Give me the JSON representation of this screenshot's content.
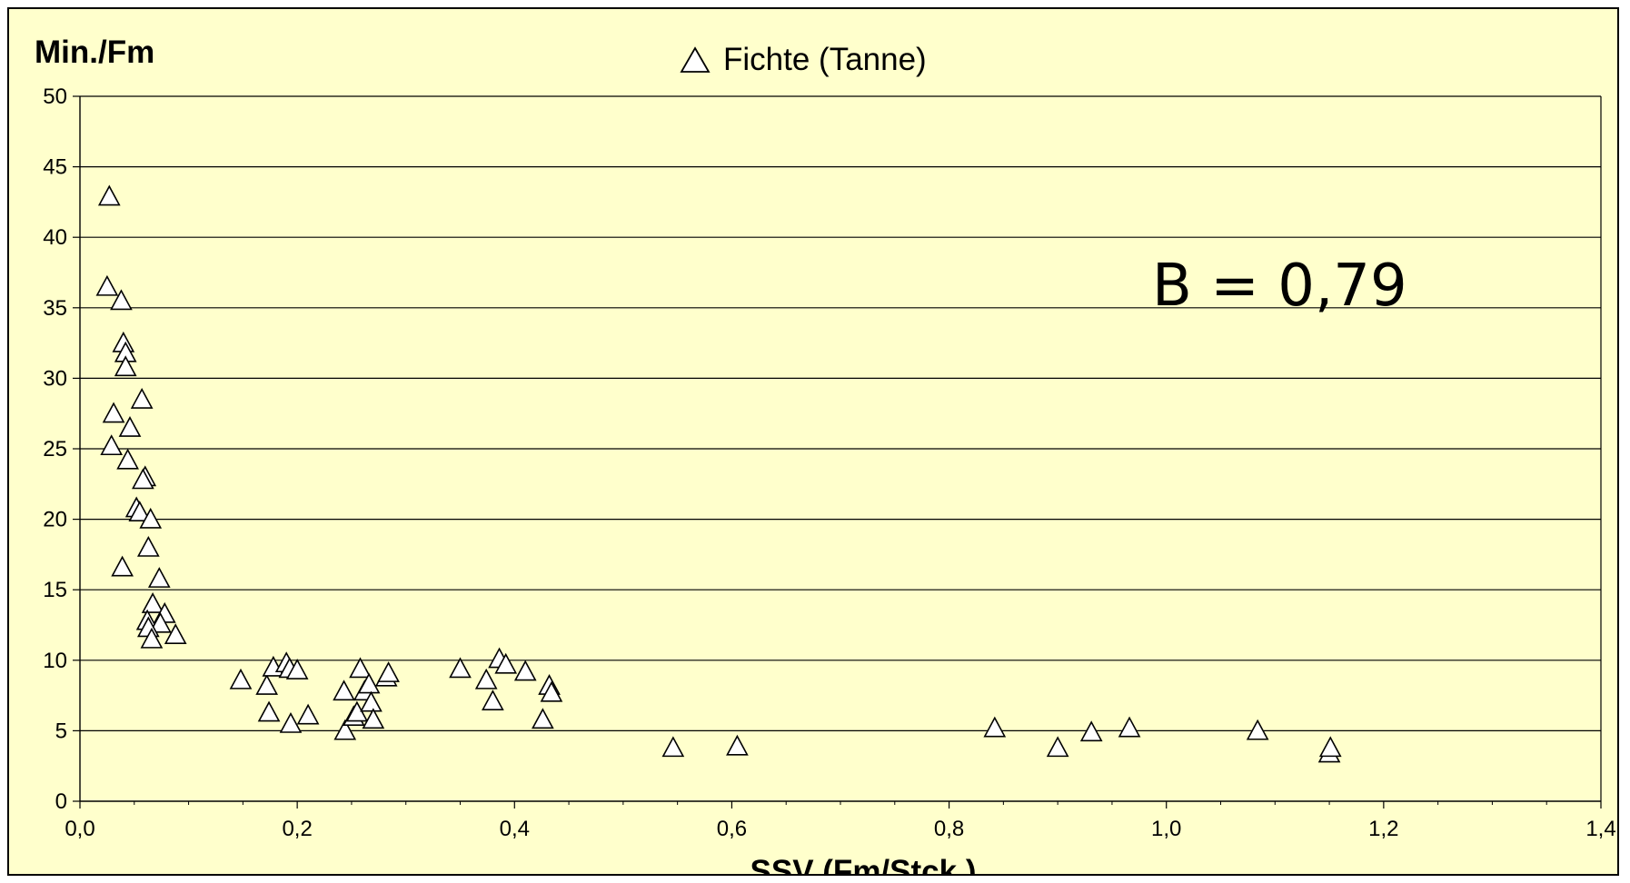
{
  "chart_data": {
    "type": "scatter",
    "ylabel": "Min./Fm",
    "xlabel": "SSV (Fm/Stck.)",
    "xlim": [
      0,
      1.4
    ],
    "ylim": [
      0,
      50
    ],
    "x_ticks": [
      "0,0",
      "0,2",
      "0,4",
      "0,6",
      "0,8",
      "1,0",
      "1,2",
      "1,4"
    ],
    "y_ticks": [
      "0",
      "5",
      "10",
      "15",
      "20",
      "25",
      "30",
      "35",
      "40",
      "45",
      "50"
    ],
    "grid": "horizontal",
    "legend_position": "top-center",
    "annotation": "B = 0,79",
    "series": [
      {
        "name": "Fichte (Tanne)",
        "marker": "triangle-open",
        "points": [
          [
            0.027,
            42.9
          ],
          [
            0.025,
            36.5
          ],
          [
            0.038,
            35.5
          ],
          [
            0.04,
            32.5
          ],
          [
            0.042,
            31.8
          ],
          [
            0.042,
            30.8
          ],
          [
            0.057,
            28.5
          ],
          [
            0.031,
            27.5
          ],
          [
            0.046,
            26.5
          ],
          [
            0.029,
            25.2
          ],
          [
            0.044,
            24.2
          ],
          [
            0.06,
            23.0
          ],
          [
            0.058,
            22.8
          ],
          [
            0.052,
            20.8
          ],
          [
            0.055,
            20.5
          ],
          [
            0.065,
            20.0
          ],
          [
            0.063,
            18.0
          ],
          [
            0.039,
            16.6
          ],
          [
            0.073,
            15.8
          ],
          [
            0.067,
            14.0
          ],
          [
            0.078,
            13.3
          ],
          [
            0.062,
            12.8
          ],
          [
            0.074,
            12.6
          ],
          [
            0.063,
            12.3
          ],
          [
            0.088,
            11.8
          ],
          [
            0.066,
            11.5
          ],
          [
            0.148,
            8.6
          ],
          [
            0.172,
            8.2
          ],
          [
            0.174,
            6.3
          ],
          [
            0.178,
            9.5
          ],
          [
            0.19,
            9.8
          ],
          [
            0.193,
            9.4
          ],
          [
            0.2,
            9.3
          ],
          [
            0.194,
            5.5
          ],
          [
            0.21,
            6.1
          ],
          [
            0.243,
            7.8
          ],
          [
            0.244,
            5.0
          ],
          [
            0.252,
            6.0
          ],
          [
            0.255,
            6.3
          ],
          [
            0.258,
            9.4
          ],
          [
            0.262,
            7.8
          ],
          [
            0.266,
            8.3
          ],
          [
            0.268,
            7.0
          ],
          [
            0.27,
            5.8
          ],
          [
            0.282,
            8.8
          ],
          [
            0.284,
            9.1
          ],
          [
            0.35,
            9.4
          ],
          [
            0.374,
            8.6
          ],
          [
            0.38,
            7.1
          ],
          [
            0.386,
            10.1
          ],
          [
            0.392,
            9.7
          ],
          [
            0.41,
            9.2
          ],
          [
            0.426,
            5.8
          ],
          [
            0.432,
            8.2
          ],
          [
            0.434,
            7.7
          ],
          [
            0.546,
            3.8
          ],
          [
            0.605,
            3.9
          ],
          [
            0.842,
            5.2
          ],
          [
            0.9,
            3.8
          ],
          [
            0.931,
            4.9
          ],
          [
            0.966,
            5.2
          ],
          [
            1.084,
            5.0
          ],
          [
            1.15,
            3.4
          ],
          [
            1.151,
            3.8
          ]
        ]
      }
    ]
  },
  "colors": {
    "background": "#ffffcc",
    "grid": "#000000",
    "marker_fill": "#ffffff",
    "marker_stroke": "#000000"
  }
}
